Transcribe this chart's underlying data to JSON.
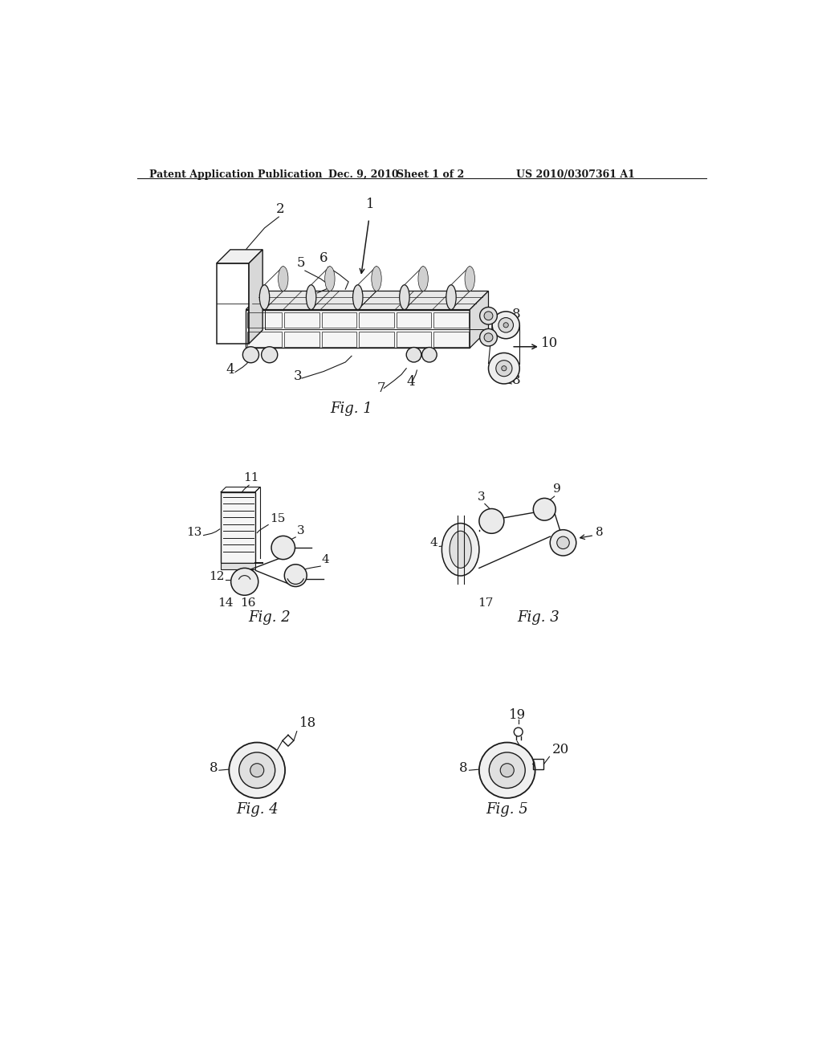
{
  "bg_color": "#ffffff",
  "header_text": "Patent Application Publication",
  "header_date": "Dec. 9, 2010",
  "header_sheet": "Sheet 1 of 2",
  "header_patent": "US 2010/0307361 A1",
  "fig1_label": "Fig. 1",
  "fig2_label": "Fig. 2",
  "fig3_label": "Fig. 3",
  "fig4_label": "Fig. 4",
  "fig5_label": "Fig. 5"
}
